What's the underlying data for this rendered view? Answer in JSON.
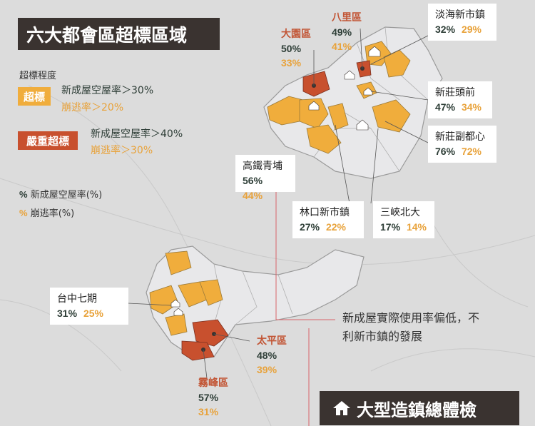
{
  "title": "六大都會區超標區域",
  "legend": {
    "heading": "超標程度",
    "over": {
      "badge": "超標",
      "line1": "新成屋空屋率＞30%",
      "line2": "崩逃率＞20%"
    },
    "severe": {
      "badge": "嚴重超標",
      "line1": "新成屋空屋率＞40%",
      "line2": "崩逃率＞30%"
    },
    "key_vacancy": {
      "mark": "%",
      "text": "新成屋空屋率(%)"
    },
    "key_flee": {
      "mark": "%",
      "text": "崩逃率(%)"
    }
  },
  "areas": [
    {
      "id": "danhai",
      "name": "淡海新市鎮",
      "vacancy": "32%",
      "flee": "29%",
      "severity": "over"
    },
    {
      "id": "xinzhuang-touqian",
      "name": "新莊頭前",
      "vacancy": "47%",
      "flee": "34%",
      "severity": "over"
    },
    {
      "id": "xinzhuang-sub",
      "name": "新莊副都心",
      "vacancy": "76%",
      "flee": "72%",
      "severity": "over"
    },
    {
      "id": "bali",
      "name": "八里區",
      "vacancy": "49%",
      "flee": "41%",
      "severity": "severe"
    },
    {
      "id": "dayuan",
      "name": "大園區",
      "vacancy": "50%",
      "flee": "33%",
      "severity": "severe"
    },
    {
      "id": "hsr-qingpu",
      "name": "高鐵青埔",
      "vacancy": "56%",
      "flee": "44%",
      "severity": "over"
    },
    {
      "id": "linkou",
      "name": "林口新市鎮",
      "vacancy": "27%",
      "flee": "22%",
      "severity": "over"
    },
    {
      "id": "sanxia-beida",
      "name": "三峽北大",
      "vacancy": "17%",
      "flee": "14%",
      "severity": "over"
    },
    {
      "id": "taichung-7",
      "name": "台中七期",
      "vacancy": "31%",
      "flee": "25%",
      "severity": "over"
    },
    {
      "id": "taiping",
      "name": "太平區",
      "vacancy": "48%",
      "flee": "39%",
      "severity": "severe"
    },
    {
      "id": "wufeng",
      "name": "霧峰區",
      "vacancy": "57%",
      "flee": "31%",
      "severity": "severe"
    }
  ],
  "annotation": {
    "line1": "新成屋實際使用率偏低，不",
    "line2": "利新市鎮的發展"
  },
  "section_heading": "大型造鎮總體檢",
  "colors": {
    "over": "#f0ad3c",
    "severe": "#c8502e",
    "dark_text": "#2e3e37",
    "orange_text": "#e8a23a",
    "region_fill": "#e8e8ea",
    "title_bg": "#3a3330",
    "leader_line": "#d9646a"
  },
  "icons": [
    "home-icon"
  ]
}
